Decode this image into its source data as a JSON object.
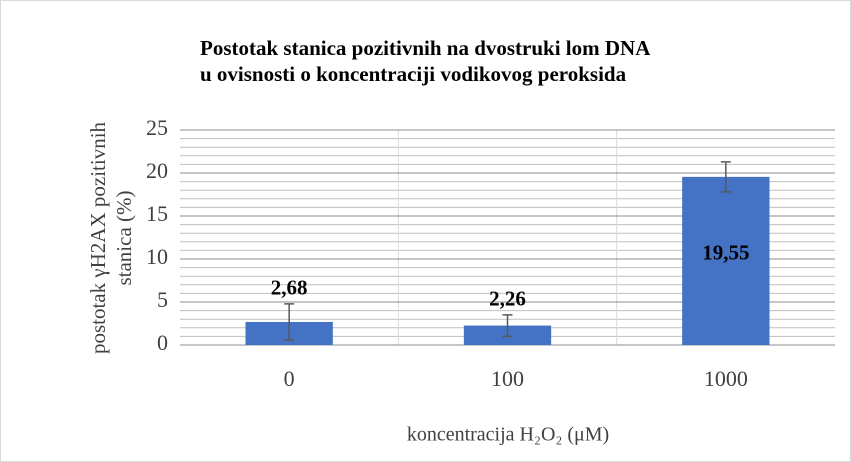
{
  "chart_data": {
    "type": "bar",
    "title": [
      "Postotak stanica pozitivnih na dvostruki lom DNA",
      "u ovisnosti o koncentraciji vodikovog peroksida"
    ],
    "ylabel": [
      "postotak γH2AX pozitivnih",
      "stanica (%)"
    ],
    "xlabel": "koncentracija H₂O₂ (μM)",
    "categories": [
      "0",
      "100",
      "1000"
    ],
    "values": [
      2.68,
      2.26,
      19.55
    ],
    "value_labels": [
      "2,68",
      "2,26",
      "19,55"
    ],
    "errors": [
      2.1,
      1.25,
      1.75
    ],
    "color": "#4472c4",
    "ylim": [
      0,
      25
    ],
    "yticks": [
      0,
      5,
      10,
      15,
      20,
      25
    ],
    "minor_yticks": [
      1,
      2,
      3,
      4,
      6,
      7,
      8,
      9,
      11,
      12,
      13,
      14,
      16,
      17,
      18,
      19,
      21,
      22,
      23,
      24
    ],
    "grid": true
  }
}
